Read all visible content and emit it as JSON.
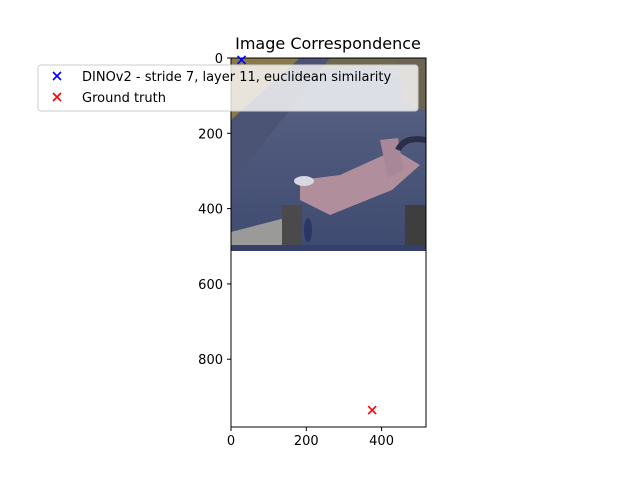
{
  "chart_data": {
    "type": "scatter",
    "title": "Image Correspondence",
    "xlabel": "",
    "ylabel": "",
    "xlim": [
      0,
      518
    ],
    "ylim": [
      980,
      0
    ],
    "y_inverted": true,
    "x_ticks": [
      "0",
      "200",
      "400"
    ],
    "x_tick_values": [
      0,
      200,
      400
    ],
    "y_ticks": [
      "0",
      "200",
      "400",
      "600",
      "800"
    ],
    "y_tick_values": [
      0,
      200,
      400,
      600,
      800
    ],
    "background_image": {
      "description_key": "photo-of-scene",
      "x_extent": [
        0,
        518
      ],
      "y_extent": [
        0,
        510
      ]
    },
    "grid": false,
    "legend_position": "upper-left",
    "series": [
      {
        "name": "DINOv2 - stride 7, layer 11, euclidean similarity",
        "color": "#0000ff",
        "marker": "x",
        "points": [
          {
            "x": 28,
            "y": 5
          }
        ]
      },
      {
        "name": "Ground truth",
        "color": "#ff0000",
        "marker": "x",
        "points": [
          {
            "x": 375,
            "y": 935
          }
        ]
      }
    ]
  }
}
